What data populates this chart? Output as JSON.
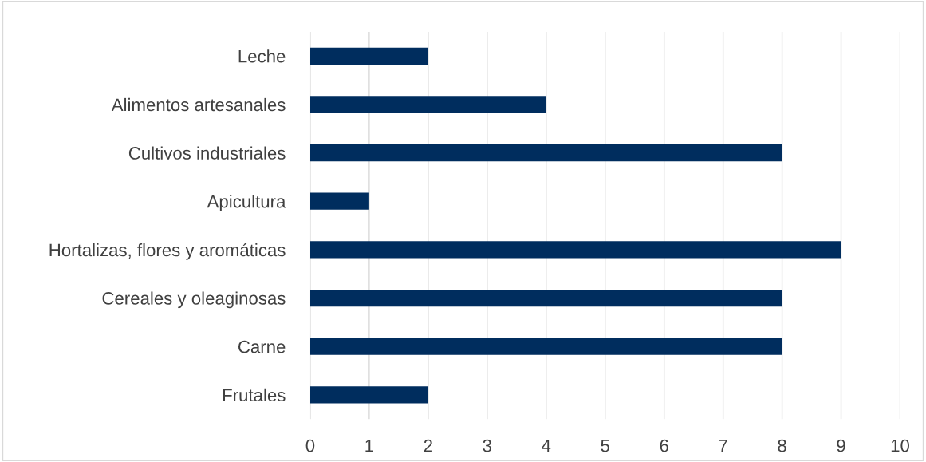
{
  "chart_data": {
    "type": "bar",
    "orientation": "horizontal",
    "categories": [
      "Leche",
      "Alimentos artesanales",
      "Cultivos industriales",
      "Apicultura",
      "Hortalizas, flores y aromáticas",
      "Cereales y oleaginosas",
      "Carne",
      "Frutales"
    ],
    "values": [
      2,
      4,
      8,
      1,
      9,
      8,
      8,
      2
    ],
    "color": "#002d5e",
    "xlim": [
      0,
      10
    ],
    "xticks": [
      0,
      1,
      2,
      3,
      4,
      5,
      6,
      7,
      8,
      9,
      10
    ],
    "grid": "x",
    "legend": false
  }
}
